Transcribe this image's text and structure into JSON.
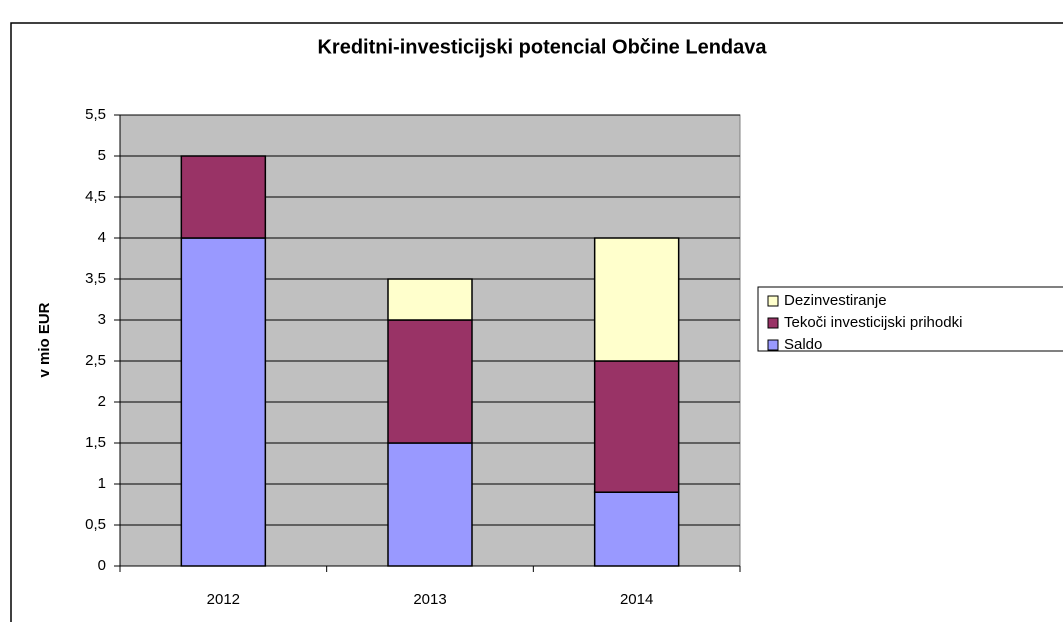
{
  "chart_data": {
    "type": "bar",
    "stacked": true,
    "title": "Kreditni-investicijski potencial Občine Lendava",
    "y_label": "v mio EUR",
    "categories": [
      "2012",
      "2013",
      "2014"
    ],
    "series": [
      {
        "name": "Saldo",
        "color": "#9999ff",
        "values": [
          4,
          1.5,
          0.9
        ]
      },
      {
        "name": "Tekoči investicijski prihodki",
        "color": "#993366",
        "values": [
          1,
          1.5,
          1.6
        ]
      },
      {
        "name": "Dezinvestiranje",
        "color": "#ffffcc",
        "values": [
          0,
          0.5,
          1.5
        ]
      }
    ],
    "ylim": [
      0,
      5.5
    ],
    "yticks": [
      0,
      {
        "value": 0.5,
        "label": "0,5"
      },
      1,
      {
        "value": 1.5,
        "label": "1,5"
      },
      2,
      {
        "value": 2.5,
        "label": "2,5"
      },
      3,
      {
        "value": 3.5,
        "label": "3,5"
      },
      4,
      {
        "value": 4.5,
        "label": "4,5"
      },
      5,
      {
        "value": 5.5,
        "label": "5,5"
      }
    ],
    "grid": true,
    "legend": "right",
    "plot_background": "#c0c0c0"
  }
}
